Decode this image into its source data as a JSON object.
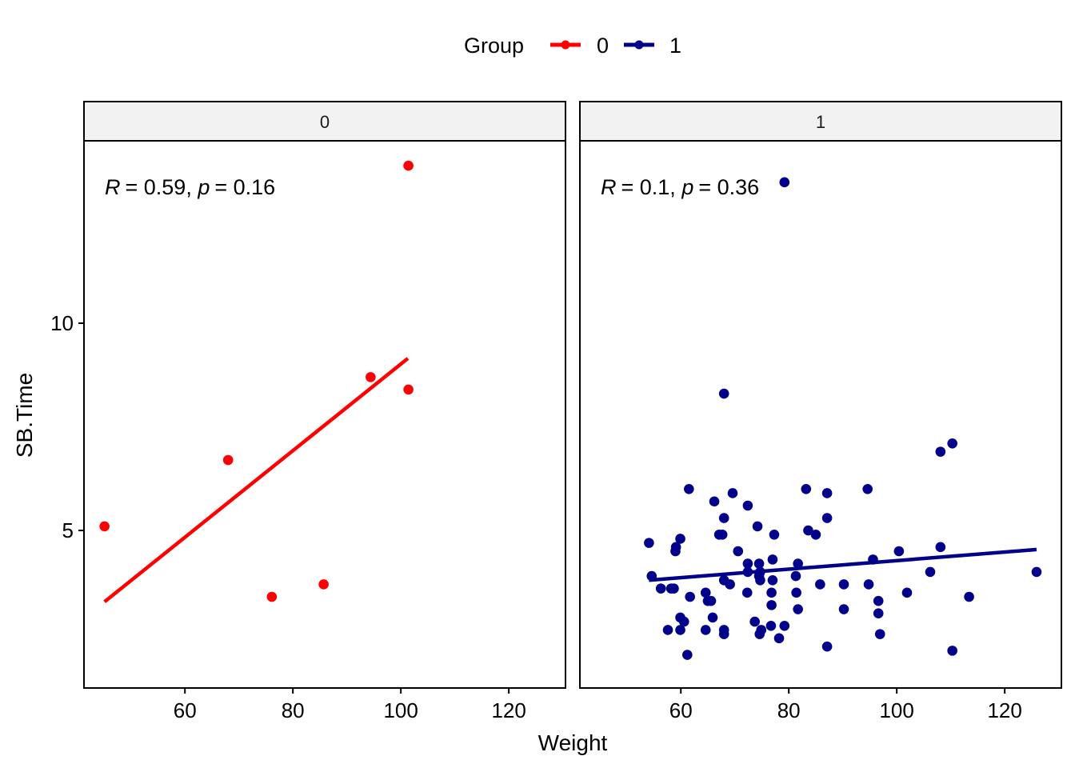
{
  "chart_data": {
    "type": "scatter",
    "title": "",
    "xlabel": "Weight",
    "ylabel": "SB.Time",
    "xlim": [
      41.3,
      130.5
    ],
    "ylim": [
      1.2,
      14.4
    ],
    "x_ticks": [
      60,
      80,
      100,
      120
    ],
    "y_ticks": [
      5,
      10
    ],
    "grid": false,
    "legend": {
      "title": "Group",
      "placement": "top",
      "entries": [
        {
          "label": "0",
          "color": "#ff0000"
        },
        {
          "label": "1",
          "color": "#00008b"
        }
      ]
    },
    "facets": [
      {
        "strip_label": "0",
        "color": "#ff0000",
        "annotation": {
          "R_symbol": "R",
          "R_value": "= 0.59, ",
          "p_symbol": "p",
          "p_value": "= 0.16"
        },
        "regression": {
          "x": [
            45.1,
            101.3
          ],
          "y": [
            3.28,
            9.15
          ]
        },
        "points": {
          "x": [
            45.1,
            68.0,
            76.1,
            85.7,
            94.4,
            101.4,
            101.4
          ],
          "y": [
            5.1,
            6.7,
            3.4,
            3.7,
            8.7,
            8.4,
            13.8
          ]
        }
      },
      {
        "strip_label": "1",
        "color": "#00008b",
        "annotation": {
          "R_symbol": "R",
          "R_value": "= 0.1, ",
          "p_symbol": "p",
          "p_value": "= 0.36"
        },
        "regression": {
          "x": [
            54.1,
            125.9
          ],
          "y": [
            3.8,
            4.54
          ]
        },
        "points": {
          "x": [
            54.1,
            54.6,
            56.3,
            57.6,
            58.2,
            58.7,
            59.0,
            59.1,
            59.9,
            59.9,
            59.9,
            60.6,
            61.2,
            61.5,
            61.7,
            64.6,
            64.6,
            65.0,
            65.6,
            65.9,
            66.2,
            67.1,
            67.7,
            68.0,
            68.0,
            68.0,
            68.0,
            68.0,
            69.1,
            69.6,
            70.6,
            72.3,
            72.4,
            72.4,
            72.4,
            73.7,
            74.2,
            74.5,
            74.5,
            74.6,
            74.7,
            74.7,
            74.9,
            76.7,
            76.8,
            76.8,
            77.0,
            77.0,
            77.3,
            78.2,
            79.2,
            79.2,
            81.3,
            81.4,
            81.7,
            81.7,
            83.2,
            83.6,
            85.0,
            85.8,
            87.1,
            87.1,
            87.1,
            90.2,
            90.2,
            94.6,
            94.8,
            95.6,
            96.6,
            96.6,
            96.9,
            100.4,
            101.9,
            106.2,
            108.1,
            108.1,
            110.3,
            110.3,
            113.4,
            125.9
          ],
          "y": [
            4.7,
            3.9,
            3.6,
            2.6,
            3.6,
            3.6,
            4.5,
            4.6,
            4.8,
            2.9,
            2.6,
            2.8,
            2.0,
            6.0,
            3.4,
            3.5,
            2.6,
            3.3,
            3.3,
            2.9,
            5.7,
            4.9,
            4.9,
            2.6,
            2.5,
            5.3,
            3.8,
            8.3,
            3.7,
            5.9,
            4.5,
            3.5,
            5.6,
            4.0,
            4.2,
            2.8,
            5.1,
            4.2,
            3.9,
            2.5,
            4.0,
            3.8,
            2.6,
            2.7,
            3.5,
            3.2,
            3.8,
            4.3,
            4.9,
            2.4,
            2.7,
            13.4,
            3.9,
            3.5,
            3.1,
            4.2,
            6.0,
            5.0,
            4.9,
            3.7,
            5.9,
            5.3,
            2.2,
            3.7,
            3.1,
            6.0,
            3.7,
            4.3,
            3.3,
            3.0,
            2.5,
            4.5,
            3.5,
            4.0,
            6.9,
            4.6,
            7.1,
            2.1,
            3.4,
            4.0
          ]
        }
      }
    ]
  }
}
